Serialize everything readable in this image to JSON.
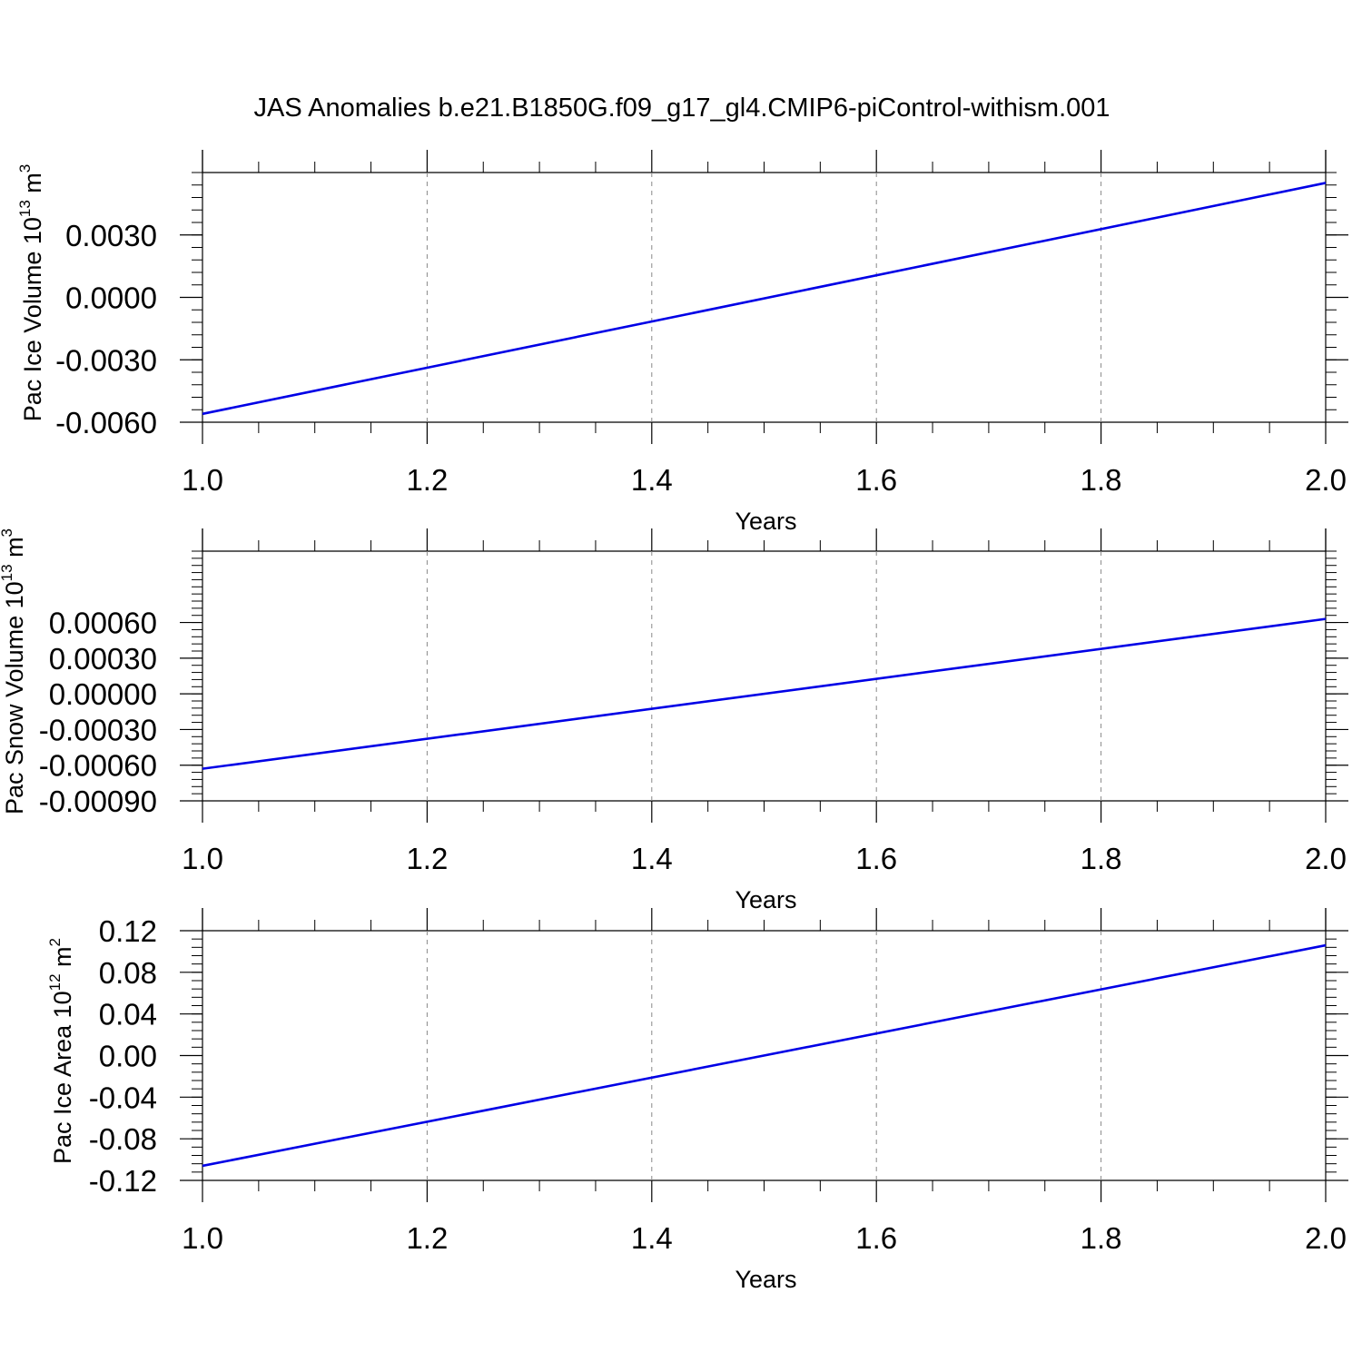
{
  "title": "JAS Anomalies b.e21.B1850G.f09_g17_gl4.CMIP6-piControl-withism.001",
  "line_color": "#0000e6",
  "chart_data": [
    {
      "type": "line",
      "ylabel": {
        "text": "Pac Ice Volume 10",
        "exp": "13",
        "unit": " m",
        "unit_exp": "3"
      },
      "xlabel": "Years",
      "xlim": [
        1.0,
        2.0
      ],
      "ylim": [
        -0.006,
        0.006
      ],
      "xticks": [
        "1.0",
        "1.2",
        "1.4",
        "1.6",
        "1.8",
        "2.0"
      ],
      "yticks": [
        "0.0030",
        "0.0000",
        "-0.0030",
        "-0.0060"
      ],
      "grid_x": true,
      "series": [
        {
          "x": [
            1.0,
            2.0
          ],
          "y": [
            -0.0056,
            0.0055
          ]
        }
      ]
    },
    {
      "type": "line",
      "ylabel": {
        "text": "Pac Snow Volume 10",
        "exp": "13",
        "unit": " m",
        "unit_exp": "3"
      },
      "xlabel": "Years",
      "xlim": [
        1.0,
        2.0
      ],
      "ylim": [
        -0.0009,
        0.0012
      ],
      "xticks": [
        "1.0",
        "1.2",
        "1.4",
        "1.6",
        "1.8",
        "2.0"
      ],
      "yticks": [
        "0.00060",
        "0.00030",
        "0.00000",
        "-0.00030",
        "-0.00060",
        "-0.00090"
      ],
      "grid_x": true,
      "series": [
        {
          "x": [
            1.0,
            2.0
          ],
          "y": [
            -0.00063,
            0.00063
          ]
        }
      ]
    },
    {
      "type": "line",
      "ylabel": {
        "text": "Pac Ice Area 10",
        "exp": "12",
        "unit": " m",
        "unit_exp": "2"
      },
      "xlabel": "Years",
      "xlim": [
        1.0,
        2.0
      ],
      "ylim": [
        -0.12,
        0.12
      ],
      "xticks": [
        "1.0",
        "1.2",
        "1.4",
        "1.6",
        "1.8",
        "2.0"
      ],
      "yticks": [
        "0.12",
        "0.08",
        "0.04",
        "0.00",
        "-0.04",
        "-0.08",
        "-0.12"
      ],
      "grid_x": true,
      "series": [
        {
          "x": [
            1.0,
            2.0
          ],
          "y": [
            -0.106,
            0.106
          ]
        }
      ]
    }
  ]
}
